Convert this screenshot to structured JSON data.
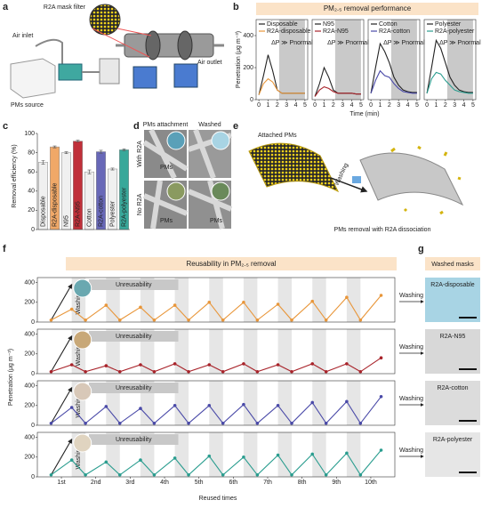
{
  "panel_labels": [
    "a",
    "b",
    "c",
    "d",
    "e",
    "f",
    "g"
  ],
  "panel_a": {
    "filter_label": "R2A mask filter",
    "inlet": "Air inlet",
    "source": "PMs source",
    "outlet": "Air outlet"
  },
  "panel_d": {
    "col_labels": [
      "PMs attachment",
      "Washed"
    ],
    "row_labels": [
      "With R2A",
      "No R2A"
    ],
    "pm_label": "PMs"
  },
  "panel_e": {
    "top": "Attached PMs",
    "arrow": "Washing",
    "bottom": "PMs removal with R2A dissociation"
  },
  "panel_g": {
    "title": "Washed masks",
    "arrow_label": "Washing",
    "samples": [
      "R2A-disposable",
      "R2A-N95",
      "R2A-cotton",
      "R2A-polyester"
    ]
  },
  "chart_data": [
    {
      "type": "line",
      "title": "PM₂.₅ removal performance",
      "xlabel": "Time (min)",
      "ylabel": "Penetration (μg m⁻³)",
      "annotation": "ΔP ≫ Pnormal",
      "shade": [
        2.2,
        5
      ],
      "x": [
        0,
        0.5,
        1,
        1.5,
        2,
        2.5,
        3,
        3.5,
        4,
        4.5,
        5
      ],
      "xlim": [
        -0.3,
        5.3
      ],
      "xticks": [
        0,
        1,
        2,
        3,
        4,
        5
      ],
      "ylim": [
        0,
        500
      ],
      "yticks": [
        0,
        200,
        400
      ],
      "series": [
        {
          "name": "Disposable",
          "color": "#222222",
          "values": [
            30,
            150,
            280,
            180,
            60,
            40,
            40,
            40,
            40,
            40,
            40
          ]
        },
        {
          "name": "R2A-disposable",
          "color": "#e8963a",
          "values": [
            30,
            100,
            130,
            110,
            60,
            40,
            40,
            40,
            40,
            40,
            40
          ]
        }
      ]
    },
    {
      "type": "line",
      "annotation": "ΔP ≫ Pnormal",
      "shade": [
        2.2,
        5
      ],
      "x": [
        0,
        0.5,
        1,
        1.5,
        2,
        2.5,
        3,
        3.5,
        4,
        4.5,
        5
      ],
      "xlim": [
        -0.3,
        5.3
      ],
      "xticks": [
        0,
        1,
        2,
        3,
        4,
        5
      ],
      "ylim": [
        0,
        500
      ],
      "series": [
        {
          "name": "N95",
          "color": "#222222",
          "values": [
            20,
            100,
            200,
            140,
            60,
            40,
            40,
            40,
            40,
            35,
            35
          ]
        },
        {
          "name": "R2A-N95",
          "color": "#a8232a",
          "values": [
            20,
            60,
            80,
            70,
            50,
            40,
            40,
            40,
            40,
            35,
            35
          ]
        }
      ]
    },
    {
      "type": "line",
      "annotation": "ΔP ≫ Pnormal",
      "shade": [
        2.2,
        5
      ],
      "x": [
        0,
        0.5,
        1,
        1.5,
        2,
        2.5,
        3,
        3.5,
        4,
        4.5,
        5
      ],
      "xlim": [
        -0.3,
        5.3
      ],
      "xticks": [
        0,
        1,
        2,
        3,
        4,
        5
      ],
      "ylim": [
        0,
        500
      ],
      "series": [
        {
          "name": "Cotton",
          "color": "#222222",
          "values": [
            40,
            200,
            350,
            300,
            230,
            140,
            90,
            60,
            50,
            45,
            45
          ]
        },
        {
          "name": "R2A-cotton",
          "color": "#4a4aa8",
          "values": [
            40,
            120,
            180,
            150,
            140,
            100,
            70,
            50,
            45,
            40,
            40
          ]
        }
      ]
    },
    {
      "type": "line",
      "annotation": "ΔP ≫ Pnormal",
      "shade": [
        2.2,
        5
      ],
      "x": [
        0,
        0.5,
        1,
        1.5,
        2,
        2.5,
        3,
        3.5,
        4,
        4.5,
        5
      ],
      "xlim": [
        -0.3,
        5.3
      ],
      "xticks": [
        0,
        1,
        2,
        3,
        4,
        5
      ],
      "ylim": [
        0,
        500
      ],
      "series": [
        {
          "name": "Polyester",
          "color": "#222222",
          "values": [
            40,
            200,
            370,
            320,
            230,
            140,
            90,
            60,
            50,
            45,
            45
          ]
        },
        {
          "name": "R2A-polyester",
          "color": "#2a9d8f",
          "values": [
            40,
            130,
            170,
            160,
            120,
            90,
            60,
            50,
            45,
            40,
            40
          ]
        }
      ]
    },
    {
      "type": "bar",
      "ylabel": "Removal efficiency (%)",
      "categories": [
        "Disposable",
        "R2A-disposable",
        "N95",
        "R2A-N95",
        "Cotton",
        "R2A-cotton",
        "Polyester",
        "R2A-polyester"
      ],
      "values": [
        70,
        86,
        80,
        92,
        60,
        81,
        63,
        83
      ],
      "errors": [
        2,
        1,
        1,
        1,
        2,
        1.5,
        1,
        1
      ],
      "colors": [
        "#f0f0f0",
        "#f0a868",
        "#f0f0f0",
        "#c0303a",
        "#f0f0f0",
        "#6868b8",
        "#f0f0f0",
        "#38a89a"
      ],
      "ylim": [
        0,
        100
      ],
      "yticks": [
        0,
        20,
        40,
        60,
        80,
        100
      ]
    },
    {
      "type": "line",
      "markers": true,
      "title": "Reusability in PM₂.₅ removal",
      "ylabel": "Penetration (μg m⁻³)",
      "annotations": [
        "Washing",
        "Unreusability"
      ],
      "x": [
        0.7,
        1.3,
        1.7,
        2.3,
        2.7,
        3.3,
        3.7,
        4.3,
        4.7,
        5.3,
        5.7,
        6.3,
        6.7,
        7.3,
        7.7,
        8.3,
        8.7,
        9.3,
        9.7,
        10.3
      ],
      "xlim": [
        0.3,
        10.7
      ],
      "ylim": [
        0,
        450
      ],
      "yticks": [
        0,
        200,
        400
      ],
      "series": [
        {
          "color": "#222222",
          "values": [
            20,
            380,
            null,
            null,
            null,
            null,
            null,
            null,
            null,
            null,
            null,
            null,
            null,
            null,
            null,
            null,
            null,
            null,
            null,
            null
          ]
        },
        {
          "color": "#e8963a",
          "values": [
            20,
            130,
            20,
            170,
            20,
            150,
            20,
            170,
            20,
            200,
            20,
            200,
            20,
            180,
            20,
            210,
            20,
            250,
            20,
            270
          ]
        }
      ]
    },
    {
      "type": "line",
      "markers": true,
      "annotations": [
        "Washing",
        "Unreusability"
      ],
      "x": [
        0.7,
        1.3,
        1.7,
        2.3,
        2.7,
        3.3,
        3.7,
        4.3,
        4.7,
        5.3,
        5.7,
        6.3,
        6.7,
        7.3,
        7.7,
        8.3,
        8.7,
        9.3,
        9.7,
        10.3
      ],
      "xlim": [
        0.3,
        10.7
      ],
      "ylim": [
        0,
        450
      ],
      "yticks": [
        0,
        200,
        400
      ],
      "series": [
        {
          "color": "#222222",
          "values": [
            20,
            380,
            null,
            null,
            null,
            null,
            null,
            null,
            null,
            null,
            null,
            null,
            null,
            null,
            null,
            null,
            null,
            null,
            null,
            null
          ]
        },
        {
          "color": "#a8232a",
          "values": [
            20,
            90,
            20,
            80,
            20,
            90,
            20,
            100,
            20,
            90,
            20,
            100,
            20,
            90,
            20,
            100,
            20,
            100,
            20,
            160
          ]
        }
      ]
    },
    {
      "type": "line",
      "markers": true,
      "annotations": [
        "Washing",
        "Unreusability"
      ],
      "x": [
        0.7,
        1.3,
        1.7,
        2.3,
        2.7,
        3.3,
        3.7,
        4.3,
        4.7,
        5.3,
        5.7,
        6.3,
        6.7,
        7.3,
        7.7,
        8.3,
        8.7,
        9.3,
        9.7,
        10.3
      ],
      "xlim": [
        0.3,
        10.7
      ],
      "ylim": [
        0,
        450
      ],
      "yticks": [
        0,
        200,
        400
      ],
      "series": [
        {
          "color": "#222222",
          "values": [
            20,
            380,
            null,
            null,
            null,
            null,
            null,
            null,
            null,
            null,
            null,
            null,
            null,
            null,
            null,
            null,
            null,
            null,
            null,
            null
          ]
        },
        {
          "color": "#4a4aa8",
          "values": [
            20,
            180,
            20,
            190,
            20,
            170,
            20,
            200,
            20,
            200,
            20,
            210,
            20,
            200,
            20,
            230,
            20,
            240,
            20,
            290
          ]
        }
      ]
    },
    {
      "type": "line",
      "markers": true,
      "xlabel": "Reused times",
      "annotations": [
        "Washing",
        "Unreusability"
      ],
      "x": [
        0.7,
        1.3,
        1.7,
        2.3,
        2.7,
        3.3,
        3.7,
        4.3,
        4.7,
        5.3,
        5.7,
        6.3,
        6.7,
        7.3,
        7.7,
        8.3,
        8.7,
        9.3,
        9.7,
        10.3
      ],
      "xlim": [
        0.3,
        10.7
      ],
      "ylim": [
        0,
        450
      ],
      "yticks": [
        0,
        200,
        400
      ],
      "xticks": [
        {
          "value": 1,
          "label": "1st"
        },
        {
          "value": 2,
          "label": "2nd"
        },
        {
          "value": 3,
          "label": "3rd"
        },
        {
          "value": 4,
          "label": "4th"
        },
        {
          "value": 5,
          "label": "5th"
        },
        {
          "value": 6,
          "label": "6th"
        },
        {
          "value": 7,
          "label": "7th"
        },
        {
          "value": 8,
          "label": "8th"
        },
        {
          "value": 9,
          "label": "9th"
        },
        {
          "value": 10,
          "label": "10th"
        }
      ],
      "series": [
        {
          "color": "#222222",
          "values": [
            20,
            380,
            null,
            null,
            null,
            null,
            null,
            null,
            null,
            null,
            null,
            null,
            null,
            null,
            null,
            null,
            null,
            null,
            null,
            null
          ]
        },
        {
          "color": "#2a9d8f",
          "values": [
            20,
            170,
            20,
            150,
            20,
            170,
            20,
            190,
            20,
            210,
            20,
            200,
            20,
            220,
            20,
            230,
            20,
            240,
            20,
            270
          ]
        }
      ]
    }
  ]
}
